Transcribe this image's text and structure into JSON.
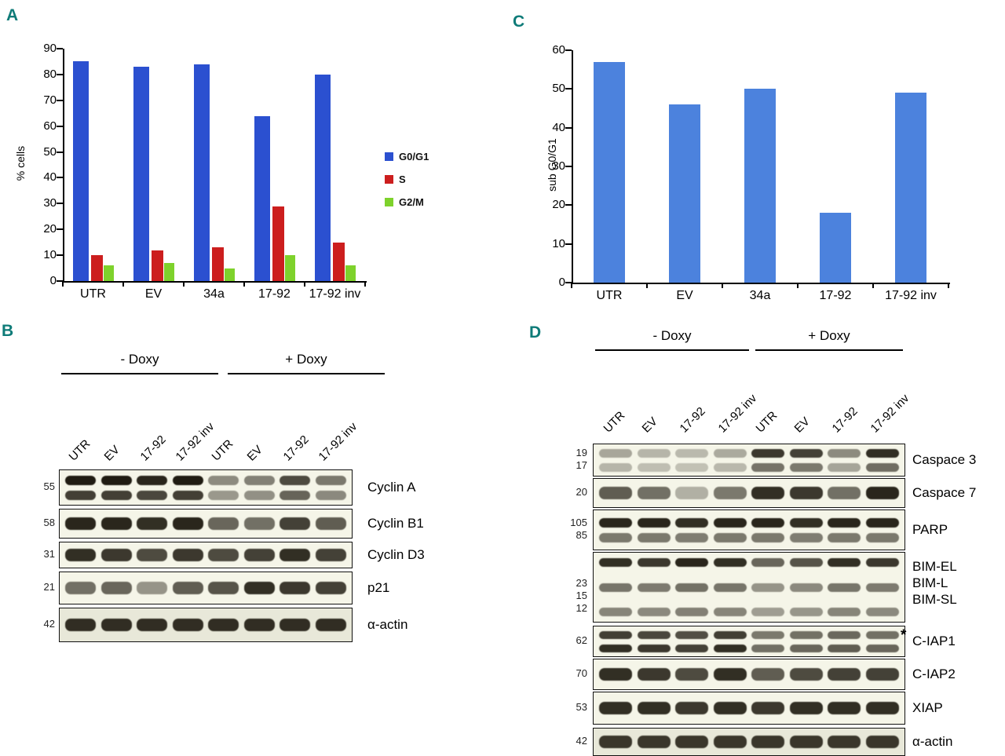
{
  "panelA": {
    "label": "A"
  },
  "panelB": {
    "label": "B",
    "group_headers": [
      "- Doxy",
      "+ Doxy"
    ],
    "lanes": [
      "UTR",
      "EV",
      "17-92",
      "17-92 inv",
      "UTR",
      "EV",
      "17-92",
      "17-92 inv"
    ],
    "rows": [
      {
        "mw": [
          "55"
        ],
        "labels": [
          "Cyclin A"
        ],
        "bands": 2,
        "band_scale": [
          1,
          0.8
        ],
        "intensity": [
          0.95,
          0.95,
          0.9,
          0.95,
          0.35,
          0.4,
          0.7,
          0.45
        ]
      },
      {
        "mw": [
          "58"
        ],
        "labels": [
          "Cyclin B1"
        ],
        "bands": 1,
        "band_scale": [
          1
        ],
        "intensity": [
          0.9,
          0.9,
          0.85,
          0.9,
          0.55,
          0.5,
          0.75,
          0.6
        ]
      },
      {
        "mw": [
          "31"
        ],
        "labels": [
          "Cyclin D3"
        ],
        "bands": 1,
        "band_scale": [
          1
        ],
        "intensity": [
          0.85,
          0.8,
          0.7,
          0.8,
          0.7,
          0.75,
          0.85,
          0.75
        ]
      },
      {
        "mw": [
          "21"
        ],
        "labels": [
          "p21"
        ],
        "bands": 1,
        "band_scale": [
          1
        ],
        "intensity": [
          0.5,
          0.55,
          0.3,
          0.6,
          0.65,
          0.85,
          0.8,
          0.75
        ]
      },
      {
        "mw": [
          "42"
        ],
        "labels": [
          "α-actin"
        ],
        "bands": 1,
        "band_scale": [
          1
        ],
        "intensity": [
          0.85,
          0.85,
          0.85,
          0.85,
          0.85,
          0.85,
          0.85,
          0.85
        ]
      }
    ]
  },
  "panelC": {
    "label": "C"
  },
  "panelD": {
    "label": "D",
    "group_headers": [
      "- Doxy",
      "+ Doxy"
    ],
    "lanes": [
      "UTR",
      "EV",
      "17-92",
      "17-92 inv",
      "UTR",
      "EV",
      "17-92",
      "17-92 inv"
    ],
    "rows": [
      {
        "mw": [
          "19",
          "17"
        ],
        "labels": [
          "Caspace 3"
        ],
        "bands": 2,
        "band_scale": [
          1,
          0.6
        ],
        "intensity": [
          0.2,
          0.12,
          0.1,
          0.18,
          0.8,
          0.75,
          0.35,
          0.85
        ]
      },
      {
        "mw": [
          "20"
        ],
        "labels": [
          "Caspace 7"
        ],
        "bands": 1,
        "band_scale": [
          1
        ],
        "intensity": [
          0.6,
          0.5,
          0.15,
          0.45,
          0.85,
          0.8,
          0.5,
          0.9
        ]
      },
      {
        "mw": [
          "105",
          "85"
        ],
        "labels": [
          "PARP"
        ],
        "bands": 2,
        "band_scale": [
          1,
          0.5
        ],
        "intensity": [
          0.9,
          0.9,
          0.85,
          0.9,
          0.9,
          0.85,
          0.9,
          0.9
        ]
      },
      {
        "mw": [
          "23",
          "15",
          "12"
        ],
        "labels": [
          "BIM-EL",
          "BIM-L",
          "BIM-SL"
        ],
        "bands": 3,
        "band_scale": [
          1,
          0.55,
          0.45
        ],
        "intensity": [
          0.85,
          0.8,
          0.9,
          0.85,
          0.55,
          0.65,
          0.85,
          0.8
        ]
      },
      {
        "mw": [
          "62"
        ],
        "labels": [
          "C-IAP1"
        ],
        "bands": 2,
        "band_scale": [
          0.9,
          1
        ],
        "star": true,
        "intensity": [
          0.85,
          0.8,
          0.75,
          0.85,
          0.5,
          0.55,
          0.6,
          0.55
        ]
      },
      {
        "mw": [
          "70"
        ],
        "labels": [
          "C-IAP2"
        ],
        "bands": 1,
        "band_scale": [
          1
        ],
        "intensity": [
          0.85,
          0.8,
          0.7,
          0.85,
          0.6,
          0.7,
          0.75,
          0.75
        ]
      },
      {
        "mw": [
          "53"
        ],
        "labels": [
          "XIAP"
        ],
        "bands": 1,
        "band_scale": [
          1
        ],
        "intensity": [
          0.85,
          0.85,
          0.8,
          0.85,
          0.8,
          0.85,
          0.85,
          0.85
        ]
      },
      {
        "mw": [
          "42"
        ],
        "labels": [
          "α-actin"
        ],
        "bands": 1,
        "band_scale": [
          1
        ],
        "intensity": [
          0.8,
          0.8,
          0.8,
          0.8,
          0.8,
          0.8,
          0.8,
          0.8
        ]
      }
    ]
  },
  "chart_data": [
    {
      "id": "A",
      "type": "bar",
      "categories": [
        "UTR",
        "EV",
        "34a",
        "17-92",
        "17-92 inv"
      ],
      "series": [
        {
          "name": "G0/G1",
          "color": "#2b50d0",
          "values": [
            85,
            83,
            84,
            64,
            80
          ]
        },
        {
          "name": "S",
          "color": "#cc1e1e",
          "values": [
            10,
            12,
            13,
            29,
            15
          ]
        },
        {
          "name": "G2/M",
          "color": "#7ed22c",
          "values": [
            6,
            7,
            5,
            10,
            6
          ]
        }
      ],
      "xlabel": "",
      "ylabel": "% cells",
      "ylim": [
        0,
        90
      ],
      "ytick_step": 10,
      "grid": false,
      "legend_position": "right"
    },
    {
      "id": "C",
      "type": "bar",
      "categories": [
        "UTR",
        "EV",
        "34a",
        "17-92",
        "17-92 inv"
      ],
      "series": [
        {
          "name": "sub G0/G1",
          "color": "#4c82dd",
          "values": [
            57,
            46,
            50,
            18,
            49
          ]
        }
      ],
      "xlabel": "",
      "ylabel": "sub G0/G1",
      "ylim": [
        0,
        60
      ],
      "ytick_step": 10,
      "grid": false,
      "legend_position": "none"
    }
  ]
}
